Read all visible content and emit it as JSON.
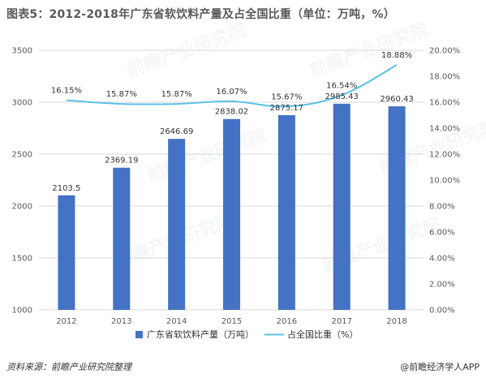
{
  "title": "图表5：2012-2018年广东省软饮料产量及占全国比重（单位：万吨，%）",
  "source": "资料来源：前瞻产业研究院整理",
  "brand": "@前瞻经济学人APP",
  "watermark": "前瞻产业研究院",
  "colors": {
    "bar": "#4472C4",
    "line": "#5BC0E8",
    "grid": "#D9D9D9",
    "axis_text": "#595959"
  },
  "chart_data": {
    "type": "bar",
    "categories": [
      "2012",
      "2013",
      "2014",
      "2015",
      "2016",
      "2017",
      "2018"
    ],
    "series": [
      {
        "name": "广东省软饮料产量（万吨）",
        "type": "bar",
        "axis": "left",
        "values": [
          2103.5,
          2369.19,
          2646.69,
          2838.02,
          2875.17,
          2985.43,
          2960.43
        ],
        "labels": [
          "2103.5",
          "2369.19",
          "2646.69",
          "2838.02",
          "2875.17",
          "2985.43",
          "2960.43"
        ]
      },
      {
        "name": "占全国比重（%）",
        "type": "line",
        "axis": "right",
        "values": [
          16.15,
          15.87,
          15.87,
          16.07,
          15.67,
          16.54,
          18.88
        ],
        "labels": [
          "16.15%",
          "15.87%",
          "15.87%",
          "16.07%",
          "15.67%",
          "16.54%",
          "18.88%"
        ]
      }
    ],
    "y_left": {
      "ylim": [
        1000,
        3500
      ],
      "ticks": [
        "1000",
        "1500",
        "2000",
        "2500",
        "3000",
        "3500"
      ],
      "tick_values": [
        1000,
        1500,
        2000,
        2500,
        3000,
        3500
      ]
    },
    "y_right": {
      "ylim": [
        0,
        20
      ],
      "ticks": [
        "0.00%",
        "2.00%",
        "4.00%",
        "6.00%",
        "8.00%",
        "10.00%",
        "12.00%",
        "14.00%",
        "16.00%",
        "18.00%",
        "20.00%"
      ],
      "tick_values": [
        0,
        2,
        4,
        6,
        8,
        10,
        12,
        14,
        16,
        18,
        20
      ]
    },
    "grid": true,
    "legend_position": "bottom"
  }
}
